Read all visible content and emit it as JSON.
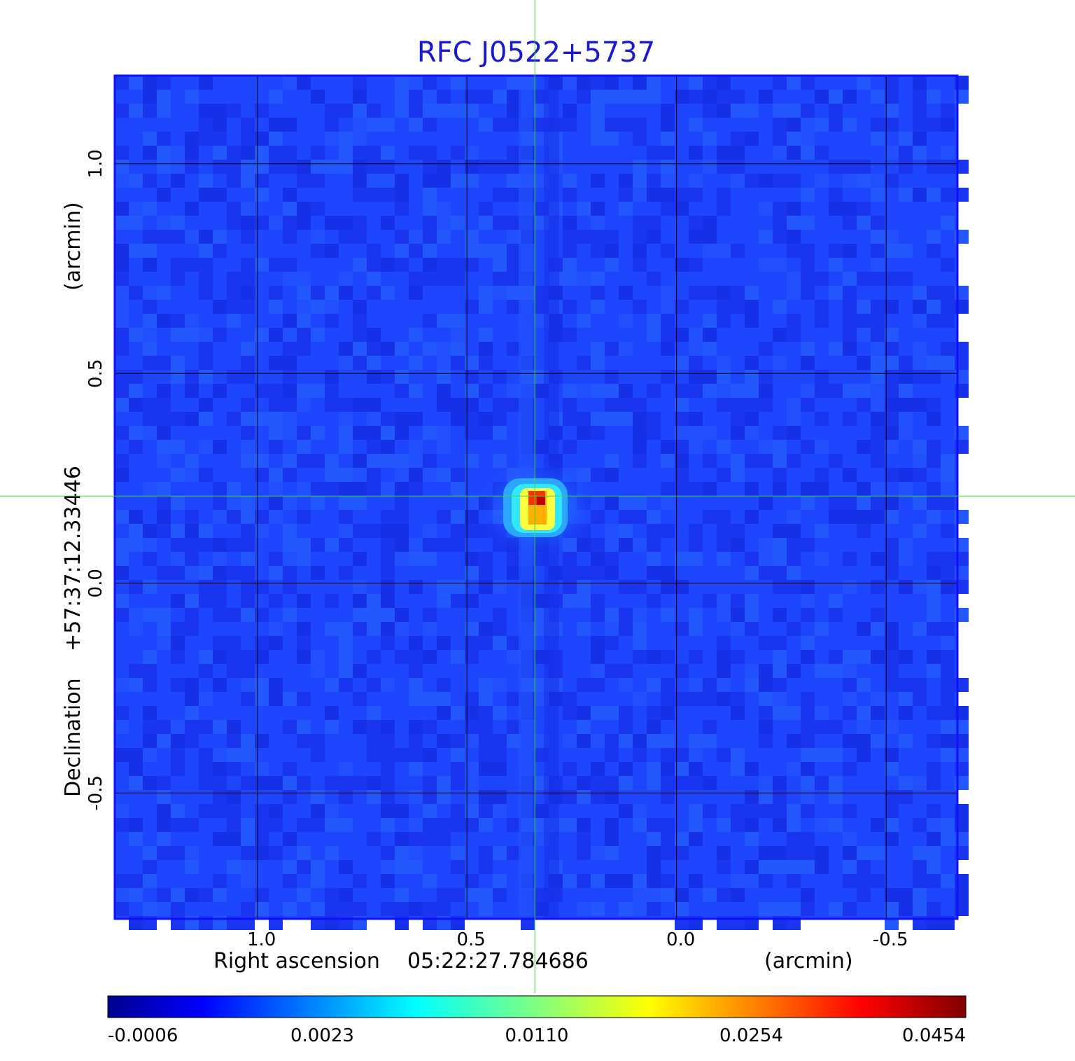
{
  "chart_data": {
    "type": "heatmap",
    "title": "RFC J0522+5737",
    "xlabel": {
      "name": "Right ascension",
      "center": "05:22:27.784686",
      "unit": "(arcmin)"
    },
    "ylabel": {
      "name": "Declination",
      "center": "+57:37:12.33446",
      "unit": "(arcmin)"
    },
    "x_ticks": [
      {
        "value": 1.0,
        "label": "1.0"
      },
      {
        "value": 0.5,
        "label": "0.5"
      },
      {
        "value": 0.0,
        "label": "0.0"
      },
      {
        "value": -0.5,
        "label": "-0.5"
      }
    ],
    "y_ticks": [
      {
        "value": 1.0,
        "label": "1.0"
      },
      {
        "value": 0.5,
        "label": "0.5"
      },
      {
        "value": 0.0,
        "label": "0.0"
      },
      {
        "value": -0.5,
        "label": "-0.5"
      }
    ],
    "xlim": [
      1.34,
      -0.67
    ],
    "ylim": [
      -0.8,
      1.21
    ],
    "x_direction": "decreasing-right",
    "grid": true,
    "crosshair": {
      "x": 0.338,
      "y": 0.208,
      "color": "#33dd33"
    },
    "source_peak": {
      "x": 0.33,
      "y": 0.18,
      "value": 0.0454
    },
    "colormap": "jet",
    "colorbar": {
      "placement": "bottom",
      "ticks": [
        {
          "value": -0.0006,
          "label": "-0.0006"
        },
        {
          "value": 0.0023,
          "label": "0.0023"
        },
        {
          "value": 0.011,
          "label": "0.0110"
        },
        {
          "value": 0.0254,
          "label": "0.0254"
        },
        {
          "value": 0.0454,
          "label": "0.0454"
        }
      ],
      "range": [
        -0.0006,
        0.0454
      ]
    },
    "colors": {
      "title": "#1a1acc",
      "frame": "#1010ff",
      "background_field": "#1e46ff",
      "grid": "#000000"
    }
  }
}
